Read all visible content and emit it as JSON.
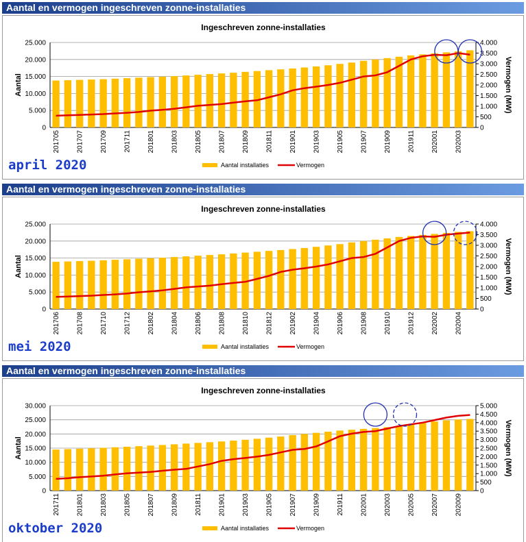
{
  "chart_data": [
    {
      "type": "bar-line",
      "header": "Aantal en vermogen ingeschreven zonne-installaties",
      "title": "Ingeschreven zonne-installaties",
      "annotation": "april 2020",
      "ylabel": "Aantal",
      "y2label": "Vermogen (MW)",
      "categories": [
        "201705",
        null,
        "201707",
        null,
        "201709",
        null,
        "201711",
        null,
        "201801",
        null,
        "201803",
        null,
        "201805",
        null,
        "201807",
        null,
        "201809",
        null,
        "201811",
        null,
        "201901",
        null,
        "201903",
        null,
        "201905",
        null,
        "201907",
        null,
        "201909",
        null,
        "201911",
        null,
        "202001",
        null,
        "202003",
        null
      ],
      "series": [
        {
          "name": "Aantal installaties",
          "color": "#ffbf00",
          "values": [
            13800,
            13900,
            14000,
            14100,
            14200,
            14350,
            14500,
            14650,
            14800,
            14950,
            15100,
            15300,
            15500,
            15700,
            15900,
            16100,
            16350,
            16600,
            16850,
            17100,
            17350,
            17650,
            17950,
            18300,
            18700,
            19100,
            19600,
            20000,
            20400,
            20800,
            21200,
            21500,
            21800,
            22100,
            22400,
            22700
          ]
        },
        {
          "name": "Vermogen",
          "color": "#e00000",
          "axis": "y2",
          "values": [
            550,
            570,
            590,
            610,
            630,
            660,
            690,
            730,
            790,
            830,
            880,
            950,
            1020,
            1060,
            1100,
            1170,
            1230,
            1280,
            1420,
            1560,
            1750,
            1850,
            1920,
            2000,
            2100,
            2250,
            2400,
            2450,
            2600,
            2900,
            3200,
            3350,
            3420,
            3400,
            3500,
            3430
          ]
        }
      ],
      "ylim": [
        0,
        25000
      ],
      "yticks": [
        0,
        {
          "value": 5000,
          "label": "5.000"
        },
        {
          "value": 10000,
          "label": "10.000"
        },
        {
          "value": 15000,
          "label": "15.000"
        },
        {
          "value": 20000,
          "label": "20.000"
        },
        {
          "value": 25000,
          "label": "25.000"
        }
      ],
      "y2lim": [
        0,
        4000
      ],
      "y2ticks": [
        0,
        500,
        {
          "value": 1000,
          "label": "1.000"
        },
        {
          "value": 1500,
          "label": "1.500"
        },
        {
          "value": 2000,
          "label": "2.000"
        },
        {
          "value": 2500,
          "label": "2.500"
        },
        {
          "value": 3000,
          "label": "3.000"
        },
        {
          "value": 3500,
          "label": "3.500"
        },
        {
          "value": 4000,
          "label": "4.000"
        }
      ],
      "grid": true,
      "legend": "bottom"
    },
    {
      "type": "bar-line",
      "header": "Aantal en vermogen ingeschreven zonne-installaties",
      "title": "Ingeschreven zonne-installaties",
      "annotation": "mei 2020",
      "ylabel": "Aantal",
      "y2label": "Vermogen (MW)",
      "categories": [
        "201706",
        null,
        "201708",
        null,
        "201710",
        null,
        "201712",
        null,
        "201802",
        null,
        "201804",
        null,
        "201806",
        null,
        "201808",
        null,
        "201810",
        null,
        "201812",
        null,
        "201902",
        null,
        "201904",
        null,
        "201906",
        null,
        "201908",
        null,
        "201910",
        null,
        "201912",
        null,
        "202002",
        null,
        "202004",
        null
      ],
      "series": [
        {
          "name": "Aantal installaties",
          "color": "#ffbf00",
          "values": [
            13900,
            14000,
            14100,
            14200,
            14350,
            14500,
            14650,
            14800,
            14950,
            15100,
            15300,
            15500,
            15700,
            15900,
            16100,
            16350,
            16600,
            16850,
            17100,
            17350,
            17650,
            17950,
            18300,
            18700,
            19100,
            19600,
            20000,
            20400,
            20800,
            21200,
            21500,
            21800,
            22100,
            22400,
            22700,
            22900
          ]
        },
        {
          "name": "Vermogen",
          "color": "#e00000",
          "axis": "y2",
          "values": [
            570,
            590,
            610,
            630,
            660,
            690,
            730,
            790,
            830,
            880,
            950,
            1020,
            1060,
            1100,
            1170,
            1230,
            1280,
            1420,
            1560,
            1750,
            1850,
            1920,
            2000,
            2100,
            2250,
            2400,
            2450,
            2600,
            2900,
            3200,
            3350,
            3420,
            3400,
            3500,
            3550,
            3600
          ]
        }
      ],
      "ylim": [
        0,
        25000
      ],
      "yticks": [
        0,
        {
          "value": 5000,
          "label": "5.000"
        },
        {
          "value": 10000,
          "label": "10.000"
        },
        {
          "value": 15000,
          "label": "15.000"
        },
        {
          "value": 20000,
          "label": "20.000"
        },
        {
          "value": 25000,
          "label": "25.000"
        }
      ],
      "y2lim": [
        0,
        4000
      ],
      "y2ticks": [
        0,
        500,
        {
          "value": 1000,
          "label": "1.000"
        },
        {
          "value": 1500,
          "label": "1.500"
        },
        {
          "value": 2000,
          "label": "2.000"
        },
        {
          "value": 2500,
          "label": "2.500"
        },
        {
          "value": 3000,
          "label": "3.000"
        },
        {
          "value": 3500,
          "label": "3.500"
        },
        {
          "value": 4000,
          "label": "4.000"
        }
      ],
      "grid": true,
      "legend": "bottom"
    },
    {
      "type": "bar-line",
      "header": "Aantal en vermogen ingeschreven zonne-installaties",
      "title": "Ingeschreven zonne-installaties",
      "annotation": "oktober 2020",
      "ylabel": "Aantal",
      "y2label": "Vermogen (MW)",
      "categories": [
        "201711",
        null,
        "201801",
        null,
        "201803",
        null,
        "201805",
        null,
        "201807",
        null,
        "201809",
        null,
        "201811",
        null,
        "201901",
        null,
        "201903",
        null,
        "201905",
        null,
        "201907",
        null,
        "201909",
        null,
        "201911",
        null,
        "202001",
        null,
        "202003",
        null,
        "202005",
        null,
        "202007",
        null,
        "202009",
        null
      ],
      "series": [
        {
          "name": "Aantal installaties",
          "color": "#ffbf00",
          "values": [
            14500,
            14650,
            14800,
            14950,
            15100,
            15300,
            15500,
            15700,
            15900,
            16100,
            16350,
            16600,
            16850,
            17100,
            17350,
            17650,
            17950,
            18300,
            18700,
            19100,
            19600,
            20000,
            20400,
            20800,
            21200,
            21500,
            21800,
            22100,
            22400,
            22700,
            23300,
            23900,
            24400,
            24800,
            25100,
            25300
          ]
        },
        {
          "name": "Vermogen",
          "color": "#e00000",
          "axis": "y2",
          "values": [
            690,
            730,
            790,
            830,
            880,
            950,
            1020,
            1060,
            1100,
            1170,
            1230,
            1280,
            1420,
            1560,
            1750,
            1850,
            1920,
            2000,
            2100,
            2250,
            2400,
            2450,
            2600,
            2900,
            3200,
            3350,
            3450,
            3500,
            3650,
            3800,
            3900,
            4000,
            4150,
            4300,
            4400,
            4450
          ]
        }
      ],
      "ylim": [
        0,
        30000
      ],
      "yticks": [
        0,
        {
          "value": 5000,
          "label": "5.000"
        },
        {
          "value": 10000,
          "label": "10.000"
        },
        {
          "value": 15000,
          "label": "15.000"
        },
        {
          "value": 20000,
          "label": "20.000"
        },
        {
          "value": 25000,
          "label": "25.000"
        },
        {
          "value": 30000,
          "label": "30.000"
        }
      ],
      "y2lim": [
        0,
        5000
      ],
      "y2ticks": [
        0,
        500,
        {
          "value": 1000,
          "label": "1.000"
        },
        {
          "value": 1500,
          "label": "1.500"
        },
        {
          "value": 2000,
          "label": "2.000"
        },
        {
          "value": 2500,
          "label": "2.500"
        },
        {
          "value": 3000,
          "label": "3.000"
        },
        {
          "value": 3500,
          "label": "3.500"
        },
        {
          "value": 4000,
          "label": "4.000"
        },
        {
          "value": 4500,
          "label": "4.500"
        },
        {
          "value": 5000,
          "label": "5.000"
        }
      ],
      "grid": true,
      "legend": "bottom"
    }
  ]
}
